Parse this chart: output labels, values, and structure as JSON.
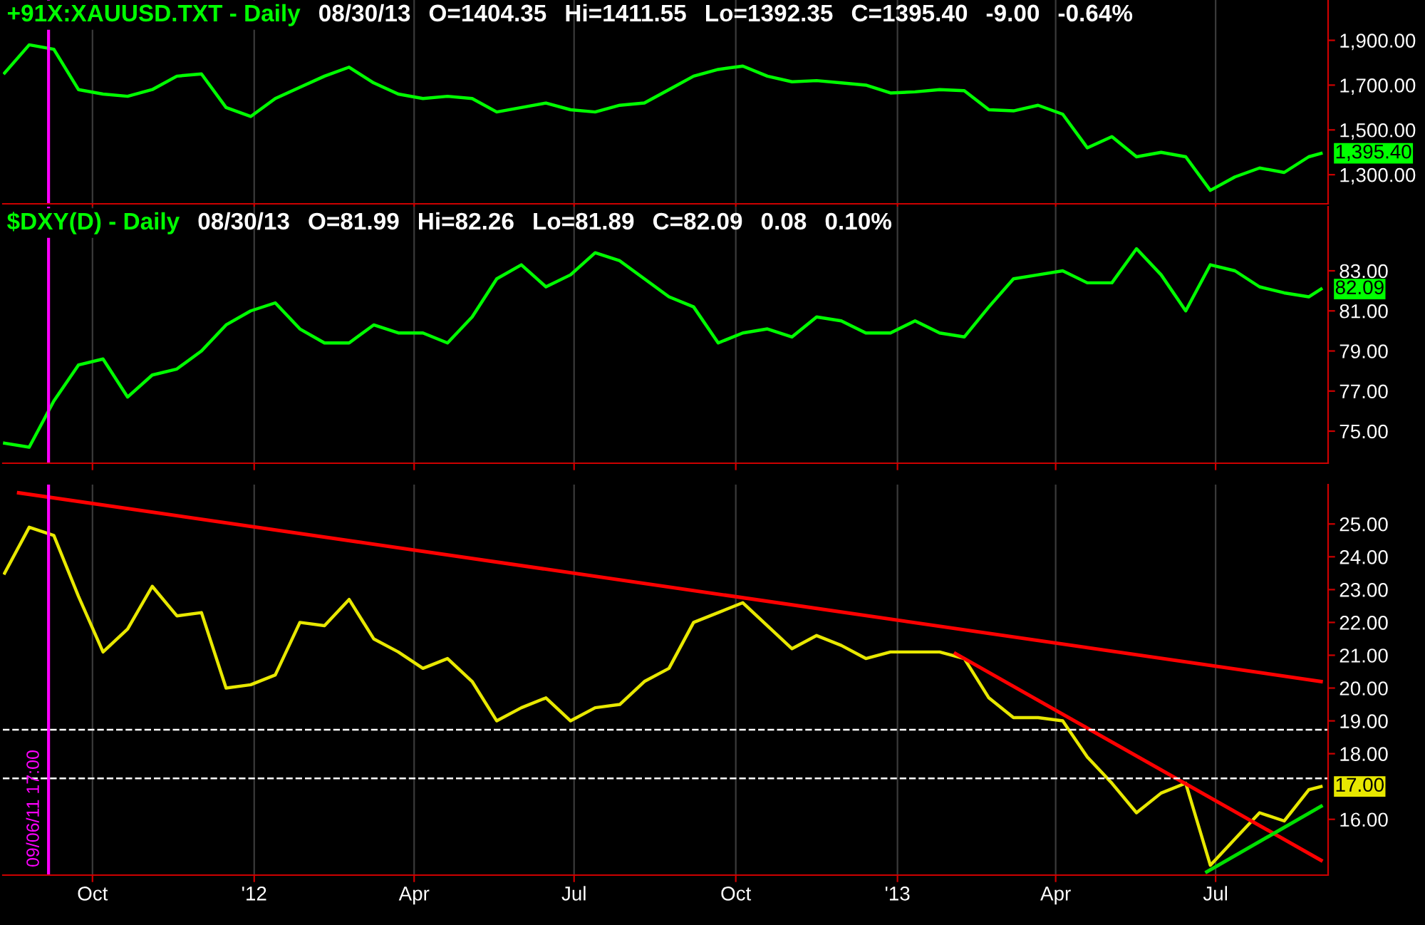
{
  "chart_data": [
    {
      "type": "line",
      "title": "+91X:XAUUSD.TXT - Daily",
      "annotations": [
        "08/30/13",
        "O=1404.35",
        "Hi=1411.55",
        "Lo=1392.35",
        "C=1395.40",
        "-9.00",
        "-0.64%",
        {
          "text": "1,395.40",
          "x": "2013-08-30",
          "y": 1395.4
        }
      ],
      "x": [
        "2011-08-12",
        "2011-08-26",
        "2011-09-09",
        "2011-09-23",
        "2011-10-07",
        "2011-10-21",
        "2011-11-04",
        "2011-11-18",
        "2011-12-02",
        "2011-12-16",
        "2011-12-30",
        "2012-01-13",
        "2012-01-27",
        "2012-02-10",
        "2012-02-24",
        "2012-03-09",
        "2012-03-23",
        "2012-04-06",
        "2012-04-20",
        "2012-05-04",
        "2012-05-18",
        "2012-06-01",
        "2012-06-15",
        "2012-06-29",
        "2012-07-13",
        "2012-07-27",
        "2012-08-10",
        "2012-08-24",
        "2012-09-07",
        "2012-09-21",
        "2012-10-05",
        "2012-10-19",
        "2012-11-02",
        "2012-11-16",
        "2012-11-30",
        "2012-12-14",
        "2012-12-28",
        "2013-01-11",
        "2013-01-25",
        "2013-02-08",
        "2013-02-22",
        "2013-03-08",
        "2013-03-22",
        "2013-04-05",
        "2013-04-19",
        "2013-05-03",
        "2013-05-17",
        "2013-05-31",
        "2013-06-14",
        "2013-06-28",
        "2013-07-12",
        "2013-07-26",
        "2013-08-09",
        "2013-08-23",
        "2013-08-30"
      ],
      "series": [
        {
          "color": "#00ff00",
          "values": [
            1754,
            1880,
            1860,
            1680,
            1660,
            1650,
            1680,
            1740,
            1750,
            1600,
            1560,
            1640,
            1690,
            1740,
            1780,
            1710,
            1660,
            1640,
            1650,
            1640,
            1580,
            1600,
            1620,
            1590,
            1580,
            1610,
            1620,
            1680,
            1740,
            1770,
            1785,
            1740,
            1715,
            1720,
            1710,
            1700,
            1665,
            1670,
            1680,
            1675,
            1590,
            1585,
            1610,
            1570,
            1420,
            1470,
            1380,
            1400,
            1380,
            1230,
            1290,
            1330,
            1310,
            1380,
            1395.4
          ]
        }
      ],
      "xlim": [
        "2011-08-11",
        "2013-09-03"
      ],
      "xticks": [
        {
          "value": "2011-10-01",
          "label": null
        },
        {
          "value": "2012-01-01",
          "label": null
        },
        {
          "value": "2012-04-01",
          "label": null
        },
        {
          "value": "2012-07-01",
          "label": null
        },
        {
          "value": "2012-10-01",
          "label": null
        },
        {
          "value": "2013-01-01",
          "label": null
        },
        {
          "value": "2013-04-01",
          "label": null
        },
        {
          "value": "2013-07-01",
          "label": null
        }
      ],
      "ylim": [
        1170,
        2080
      ],
      "yticks": [
        {
          "value": 1300,
          "label": "1,300.00"
        },
        {
          "value": 1500,
          "label": "1,500.00"
        },
        {
          "value": 1700,
          "label": "1,700.00"
        },
        {
          "value": 1900,
          "label": "1,900.00"
        }
      ],
      "grid": "x",
      "tick_labels": "y",
      "ref_lines": [
        {
          "axis": "x",
          "value": "2011-09-06",
          "color": "#ff00ff"
        }
      ]
    },
    {
      "type": "line",
      "title": "$DXY(D) - Daily",
      "annotations": [
        "08/30/13",
        "O=81.99",
        "Hi=82.26",
        "Lo=81.89",
        "C=82.09",
        "0.08",
        "0.10%",
        {
          "text": "82.09",
          "x": "2013-08-30",
          "y": 82.09
        }
      ],
      "x": [
        "2011-08-12",
        "2011-08-26",
        "2011-09-09",
        "2011-09-23",
        "2011-10-07",
        "2011-10-21",
        "2011-11-04",
        "2011-11-18",
        "2011-12-02",
        "2011-12-16",
        "2011-12-30",
        "2012-01-13",
        "2012-01-27",
        "2012-02-10",
        "2012-02-24",
        "2012-03-09",
        "2012-03-23",
        "2012-04-06",
        "2012-04-20",
        "2012-05-04",
        "2012-05-18",
        "2012-06-01",
        "2012-06-15",
        "2012-06-29",
        "2012-07-13",
        "2012-07-27",
        "2012-08-10",
        "2012-08-24",
        "2012-09-07",
        "2012-09-21",
        "2012-10-05",
        "2012-10-19",
        "2012-11-02",
        "2012-11-16",
        "2012-11-30",
        "2012-12-14",
        "2012-12-28",
        "2013-01-11",
        "2013-01-25",
        "2013-02-08",
        "2013-02-22",
        "2013-03-08",
        "2013-03-22",
        "2013-04-05",
        "2013-04-19",
        "2013-05-03",
        "2013-05-17",
        "2013-05-31",
        "2013-06-14",
        "2013-06-28",
        "2013-07-12",
        "2013-07-26",
        "2013-08-09",
        "2013-08-23",
        "2013-08-30"
      ],
      "series": [
        {
          "color": "#00ff00",
          "values": [
            74.4,
            74.2,
            76.5,
            78.3,
            78.6,
            76.7,
            77.8,
            78.1,
            79.0,
            80.3,
            81.0,
            81.4,
            80.1,
            79.4,
            79.4,
            80.3,
            79.9,
            79.9,
            79.4,
            80.7,
            82.6,
            83.3,
            82.2,
            82.8,
            83.9,
            83.5,
            82.6,
            81.7,
            81.2,
            79.4,
            79.9,
            80.1,
            79.7,
            80.7,
            80.5,
            79.9,
            79.9,
            80.5,
            79.9,
            79.7,
            81.2,
            82.6,
            82.8,
            83.0,
            82.4,
            82.4,
            84.1,
            82.8,
            81.0,
            83.3,
            83.0,
            82.2,
            81.9,
            81.7,
            82.09
          ]
        }
      ],
      "xlim": [
        "2011-08-11",
        "2013-09-03"
      ],
      "xticks": [
        {
          "value": "2011-10-01",
          "label": null
        },
        {
          "value": "2012-01-01",
          "label": null
        },
        {
          "value": "2012-04-01",
          "label": null
        },
        {
          "value": "2012-07-01",
          "label": null
        },
        {
          "value": "2012-10-01",
          "label": null
        },
        {
          "value": "2013-01-01",
          "label": null
        },
        {
          "value": "2013-04-01",
          "label": null
        },
        {
          "value": "2013-07-01",
          "label": null
        }
      ],
      "ylim": [
        73.4,
        86.2
      ],
      "yticks": [
        {
          "value": 75,
          "label": "75.00"
        },
        {
          "value": 77,
          "label": "77.00"
        },
        {
          "value": 79,
          "label": "79.00"
        },
        {
          "value": 81,
          "label": "81.00"
        },
        {
          "value": 83,
          "label": "83.00"
        }
      ],
      "grid": "x",
      "tick_labels": "y",
      "ref_lines": [
        {
          "axis": "x",
          "value": "2011-09-06",
          "color": "#ff00ff"
        }
      ]
    },
    {
      "type": "line",
      "annotations": [
        {
          "text": "17.00",
          "x": "2013-08-30",
          "y": 17.0
        }
      ],
      "x": [
        "2011-08-12",
        "2011-08-26",
        "2011-09-09",
        "2011-09-23",
        "2011-10-07",
        "2011-10-21",
        "2011-11-04",
        "2011-11-18",
        "2011-12-02",
        "2011-12-16",
        "2011-12-30",
        "2012-01-13",
        "2012-01-27",
        "2012-02-10",
        "2012-02-24",
        "2012-03-09",
        "2012-03-23",
        "2012-04-06",
        "2012-04-20",
        "2012-05-04",
        "2012-05-18",
        "2012-06-01",
        "2012-06-15",
        "2012-06-29",
        "2012-07-13",
        "2012-07-27",
        "2012-08-10",
        "2012-08-24",
        "2012-09-07",
        "2012-09-21",
        "2012-10-05",
        "2012-10-19",
        "2012-11-02",
        "2012-11-16",
        "2012-11-30",
        "2012-12-14",
        "2012-12-28",
        "2013-01-11",
        "2013-01-25",
        "2013-02-08",
        "2013-02-22",
        "2013-03-08",
        "2013-03-22",
        "2013-04-05",
        "2013-04-19",
        "2013-05-03",
        "2013-05-17",
        "2013-05-31",
        "2013-06-14",
        "2013-06-28",
        "2013-07-12",
        "2013-07-26",
        "2013-08-09",
        "2013-08-23",
        "2013-08-30"
      ],
      "series": [
        {
          "color": "#e8e800",
          "values": [
            23.5,
            24.9,
            24.65,
            22.8,
            21.1,
            21.8,
            23.1,
            22.2,
            22.3,
            20.0,
            20.1,
            20.4,
            22.0,
            21.9,
            22.7,
            21.5,
            21.1,
            20.6,
            20.9,
            20.2,
            19.0,
            19.4,
            19.7,
            19.0,
            19.4,
            19.5,
            20.2,
            20.6,
            22.0,
            22.3,
            22.6,
            21.9,
            21.2,
            21.6,
            21.3,
            20.9,
            21.1,
            21.1,
            21.1,
            20.9,
            19.7,
            19.1,
            19.1,
            19.0,
            17.9,
            17.1,
            16.2,
            16.8,
            17.1,
            14.6,
            15.4,
            16.2,
            15.95,
            16.9,
            17.0
          ]
        },
        {
          "type": "line",
          "color": "#ff0000",
          "x": [
            "2011-08-20",
            "2013-08-30"
          ],
          "values": [
            25.95,
            20.2
          ]
        },
        {
          "type": "line",
          "color": "#ff0000",
          "x": [
            "2013-02-03",
            "2013-08-30"
          ],
          "values": [
            21.05,
            14.75
          ]
        },
        {
          "type": "line",
          "color": "#00e000",
          "x": [
            "2013-06-26",
            "2013-08-30"
          ],
          "values": [
            14.4,
            16.4
          ]
        }
      ],
      "xlim": [
        "2011-08-11",
        "2013-09-03"
      ],
      "xticks": [
        {
          "value": "2011-10-01",
          "label": "Oct"
        },
        {
          "value": "2012-01-01",
          "label": "'12"
        },
        {
          "value": "2012-04-01",
          "label": "Apr"
        },
        {
          "value": "2012-07-01",
          "label": "Jul"
        },
        {
          "value": "2012-10-01",
          "label": "Oct"
        },
        {
          "value": "2013-01-01",
          "label": "'13"
        },
        {
          "value": "2013-04-01",
          "label": "Apr"
        },
        {
          "value": "2013-07-01",
          "label": "Jul"
        }
      ],
      "ylim": [
        14.3,
        26.2
      ],
      "yticks": [
        {
          "value": 16,
          "label": "16.00"
        },
        {
          "value": 18,
          "label": "18.00"
        },
        {
          "value": 19,
          "label": "19.00"
        },
        {
          "value": 20,
          "label": "20.00"
        },
        {
          "value": 21,
          "label": "21.00"
        },
        {
          "value": 22,
          "label": "22.00"
        },
        {
          "value": 23,
          "label": "23.00"
        },
        {
          "value": 24,
          "label": "24.00"
        },
        {
          "value": 25,
          "label": "25.00"
        }
      ],
      "grid": "x",
      "ref_lines": [
        {
          "axis": "x",
          "value": "2011-09-06",
          "color": "#ff00ff",
          "label": "09/06/11 17:00"
        },
        {
          "axis": "y",
          "value": 18.73,
          "color": "#ffffff",
          "line_style": "dashed"
        },
        {
          "axis": "y",
          "value": 17.25,
          "color": "#ffffff",
          "line_style": "dashed"
        }
      ]
    }
  ]
}
